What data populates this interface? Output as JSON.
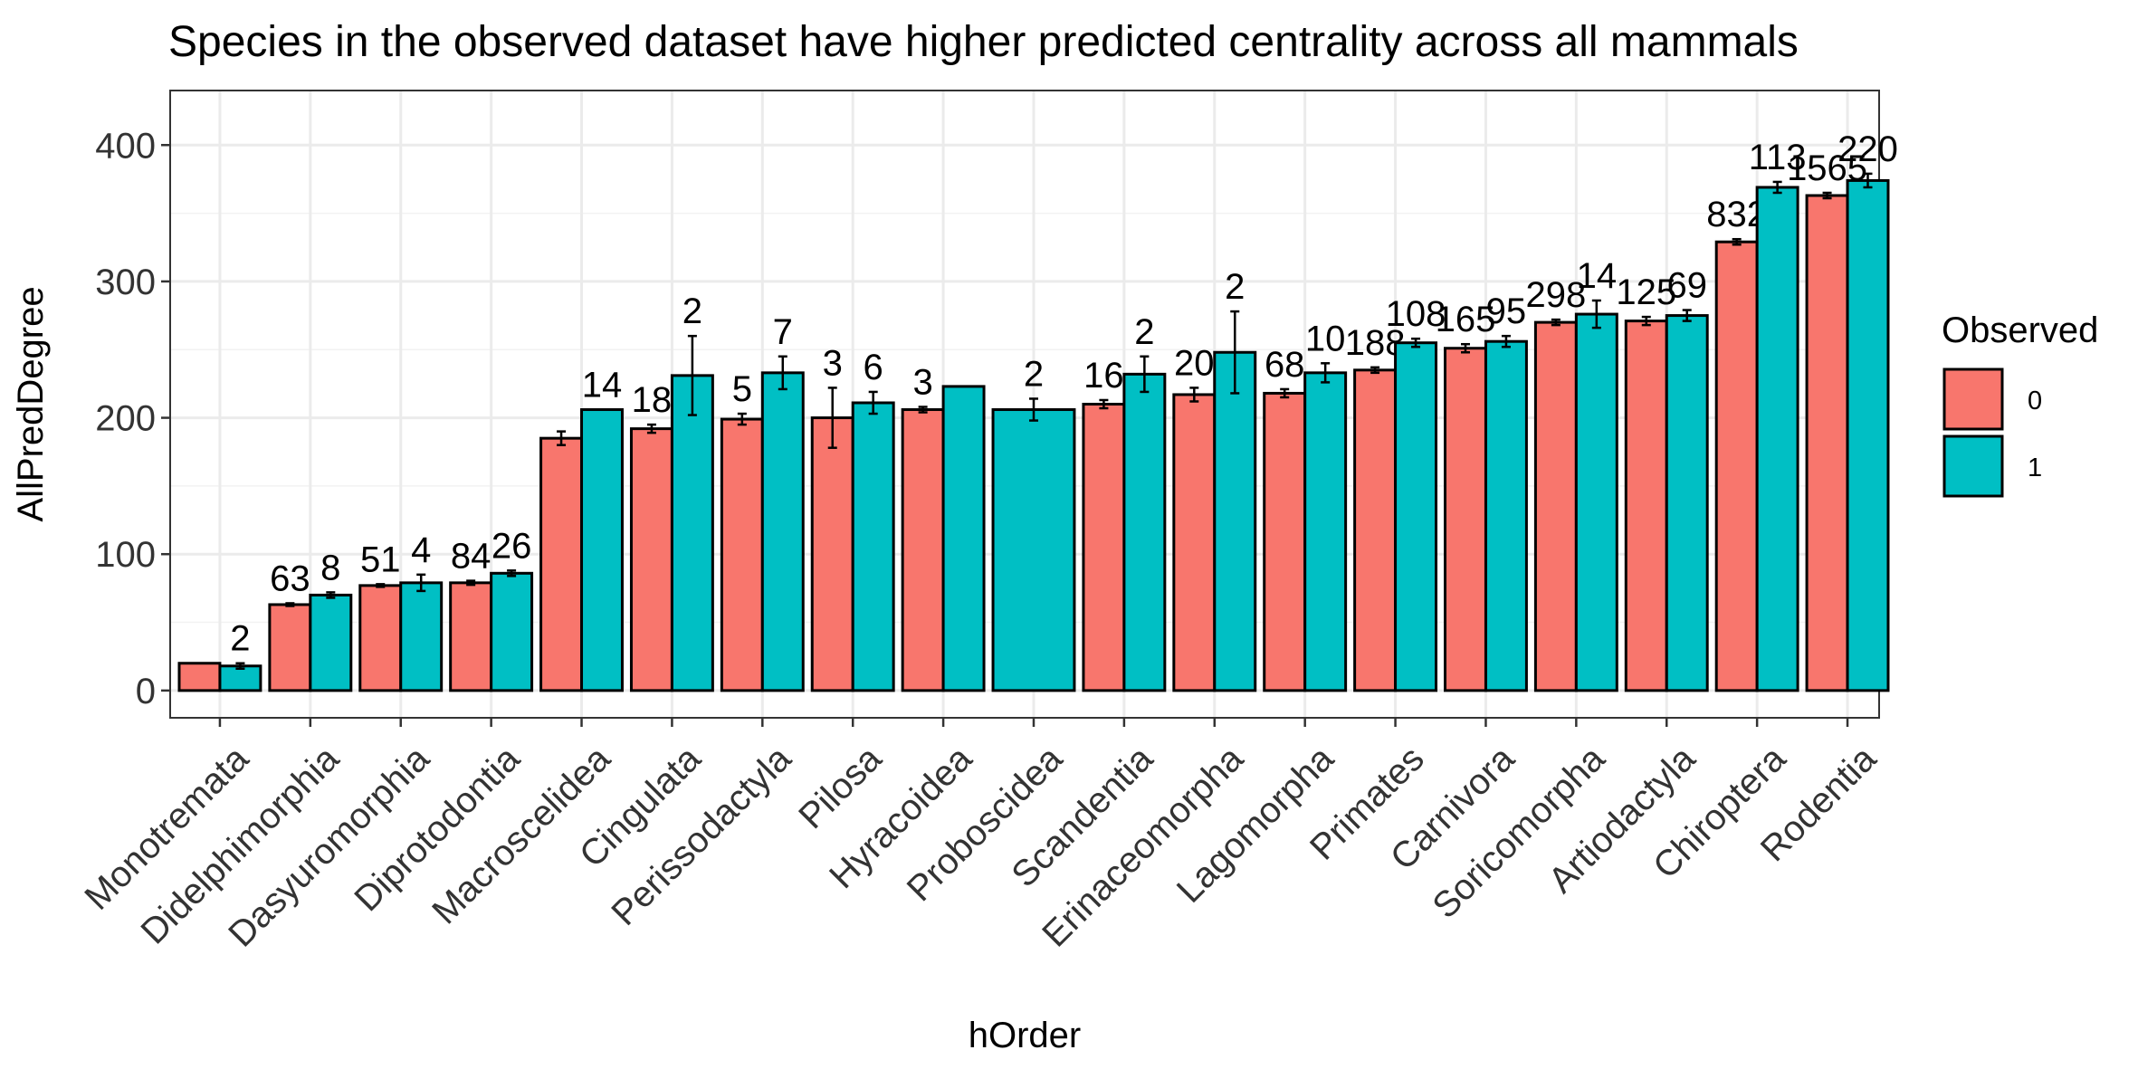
{
  "chart_data": {
    "type": "bar",
    "title": "Species in the observed dataset have higher predicted centrality across all mammals",
    "xlabel": "hOrder",
    "ylabel": "AllPredDegree",
    "ylim": [
      -20,
      440
    ],
    "yticks": [
      0,
      100,
      200,
      300,
      400
    ],
    "grid": true,
    "legend": {
      "title": "Observed",
      "position": "right",
      "entries": [
        {
          "label": "0",
          "color": "#F8766D"
        },
        {
          "label": "1",
          "color": "#00BFC4"
        }
      ]
    },
    "categories": [
      "Monotremata",
      "Didelphimorphia",
      "Dasyuromorphia",
      "Diprotodontia",
      "Macroscelidea",
      "Cingulata",
      "Perissodactyla",
      "Pilosa",
      "Hyracoidea",
      "Proboscidea",
      "Scandentia",
      "Erinaceomorpha",
      "Lagomorpha",
      "Primates",
      "Carnivora",
      "Soricomorpha",
      "Artiodactyla",
      "Chiroptera",
      "Rodentia"
    ],
    "series": [
      {
        "name": "0",
        "color": "#F8766D",
        "values": [
          20,
          63,
          77,
          79,
          185,
          192,
          199,
          200,
          206,
          null,
          210,
          217,
          218,
          235,
          251,
          270,
          271,
          329,
          363
        ],
        "errors": [
          0,
          1,
          1,
          1.5,
          5,
          3,
          4,
          22,
          2,
          null,
          3,
          5,
          3,
          2,
          3,
          2,
          3,
          2,
          2
        ],
        "counts": [
          "",
          "63",
          "51",
          "84",
          "",
          "18",
          "5",
          "3",
          "3",
          null,
          "16",
          "20",
          "68",
          "188",
          "165",
          "298",
          "125",
          "832",
          "1565"
        ]
      },
      {
        "name": "1",
        "color": "#00BFC4",
        "values": [
          18,
          70,
          79,
          86,
          206,
          231,
          233,
          211,
          223,
          206,
          232,
          248,
          233,
          255,
          256,
          276,
          275,
          369,
          374
        ],
        "errors": [
          2,
          2,
          6,
          2,
          0,
          29,
          12,
          8,
          0,
          8,
          13,
          30,
          7,
          3,
          4,
          10,
          4,
          4,
          5
        ],
        "counts": [
          "2",
          "8",
          "4",
          "26",
          "14",
          "2",
          "7",
          "6",
          "",
          "2",
          "2",
          "2",
          "10",
          "108",
          "95",
          "14",
          "69",
          "113",
          "220"
        ]
      }
    ]
  }
}
